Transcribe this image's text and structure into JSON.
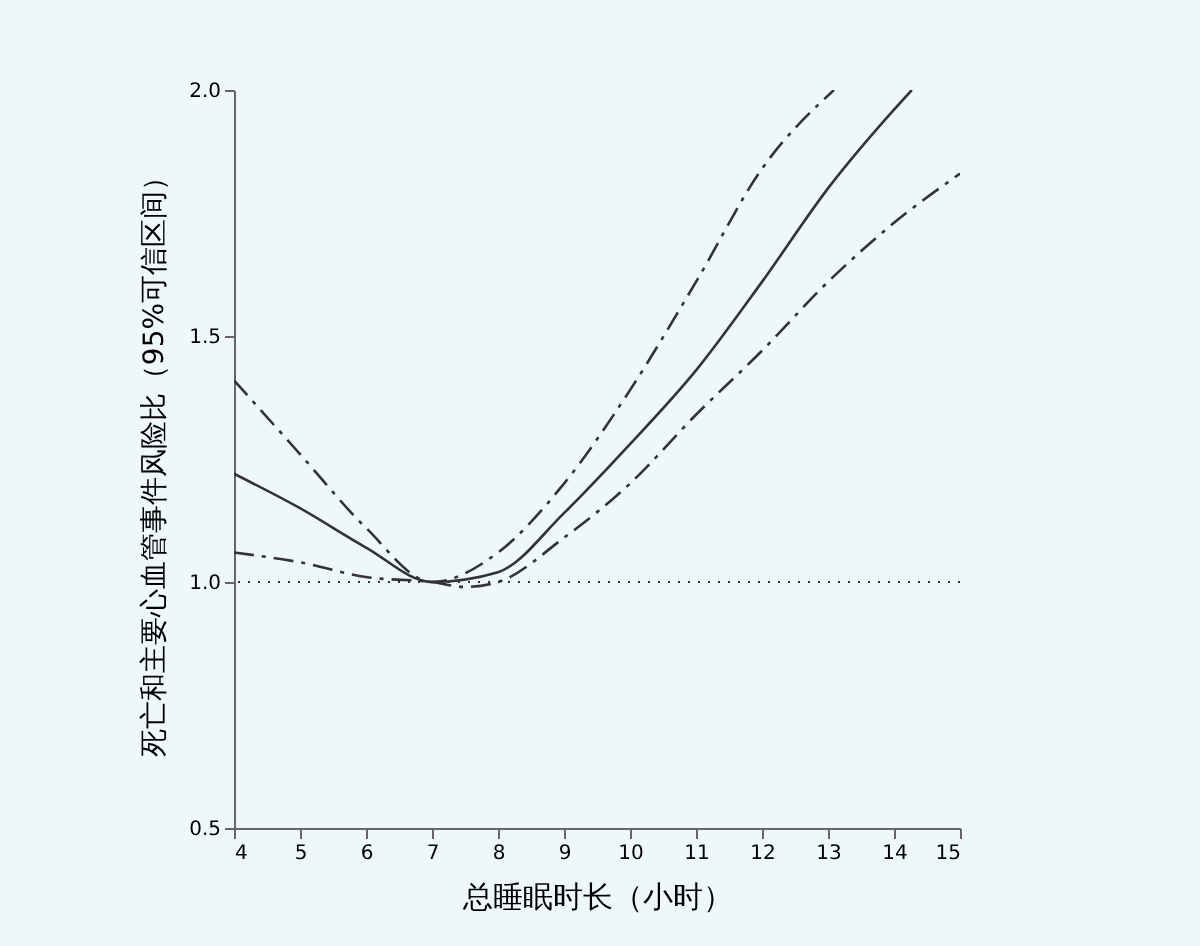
{
  "chart_data": {
    "type": "line",
    "xlabel": "总睡眠时长（小时）",
    "ylabel": "死亡和主要心血管事件风险比（95%可信区间）",
    "xlim": [
      4,
      15
    ],
    "ylim": [
      0.5,
      2.0
    ],
    "xticks": [
      4,
      5,
      6,
      7,
      8,
      9,
      10,
      11,
      12,
      13,
      14,
      15
    ],
    "yticks": [
      0.5,
      {
        "value": 1,
        "label": "1.0"
      },
      1.5,
      {
        "value": 2,
        "label": "2.0"
      }
    ],
    "grid": false,
    "series": [
      {
        "color": "#333333",
        "line_style": "solid",
        "x": [
          4,
          5,
          6,
          7,
          8,
          9,
          10,
          11,
          12,
          13,
          14,
          14.27
        ],
        "values": [
          1.22,
          1.15,
          1.07,
          1.0,
          1.02,
          1.14,
          1.28,
          1.43,
          1.61,
          1.8,
          1.96,
          2.0
        ]
      },
      {
        "color": "#333333",
        "line_style": "dashed",
        "x": [
          4,
          5,
          6,
          7,
          8,
          9,
          10,
          11,
          12,
          13.09
        ],
        "values": [
          1.41,
          1.26,
          1.11,
          1.0,
          1.06,
          1.2,
          1.39,
          1.61,
          1.84,
          2.0
        ]
      },
      {
        "color": "#333333",
        "line_style": "dashed",
        "x": [
          4,
          5,
          6,
          7,
          7.5,
          8,
          9,
          10,
          11,
          12,
          13,
          14,
          15
        ],
        "values": [
          1.06,
          1.04,
          1.01,
          1.0,
          0.99,
          1.0,
          1.09,
          1.2,
          1.34,
          1.47,
          1.61,
          1.73,
          1.83
        ]
      }
    ],
    "ref_lines": [
      {
        "axis": "y",
        "value": 1,
        "line_style": "dotted",
        "color": "#333333"
      }
    ]
  }
}
